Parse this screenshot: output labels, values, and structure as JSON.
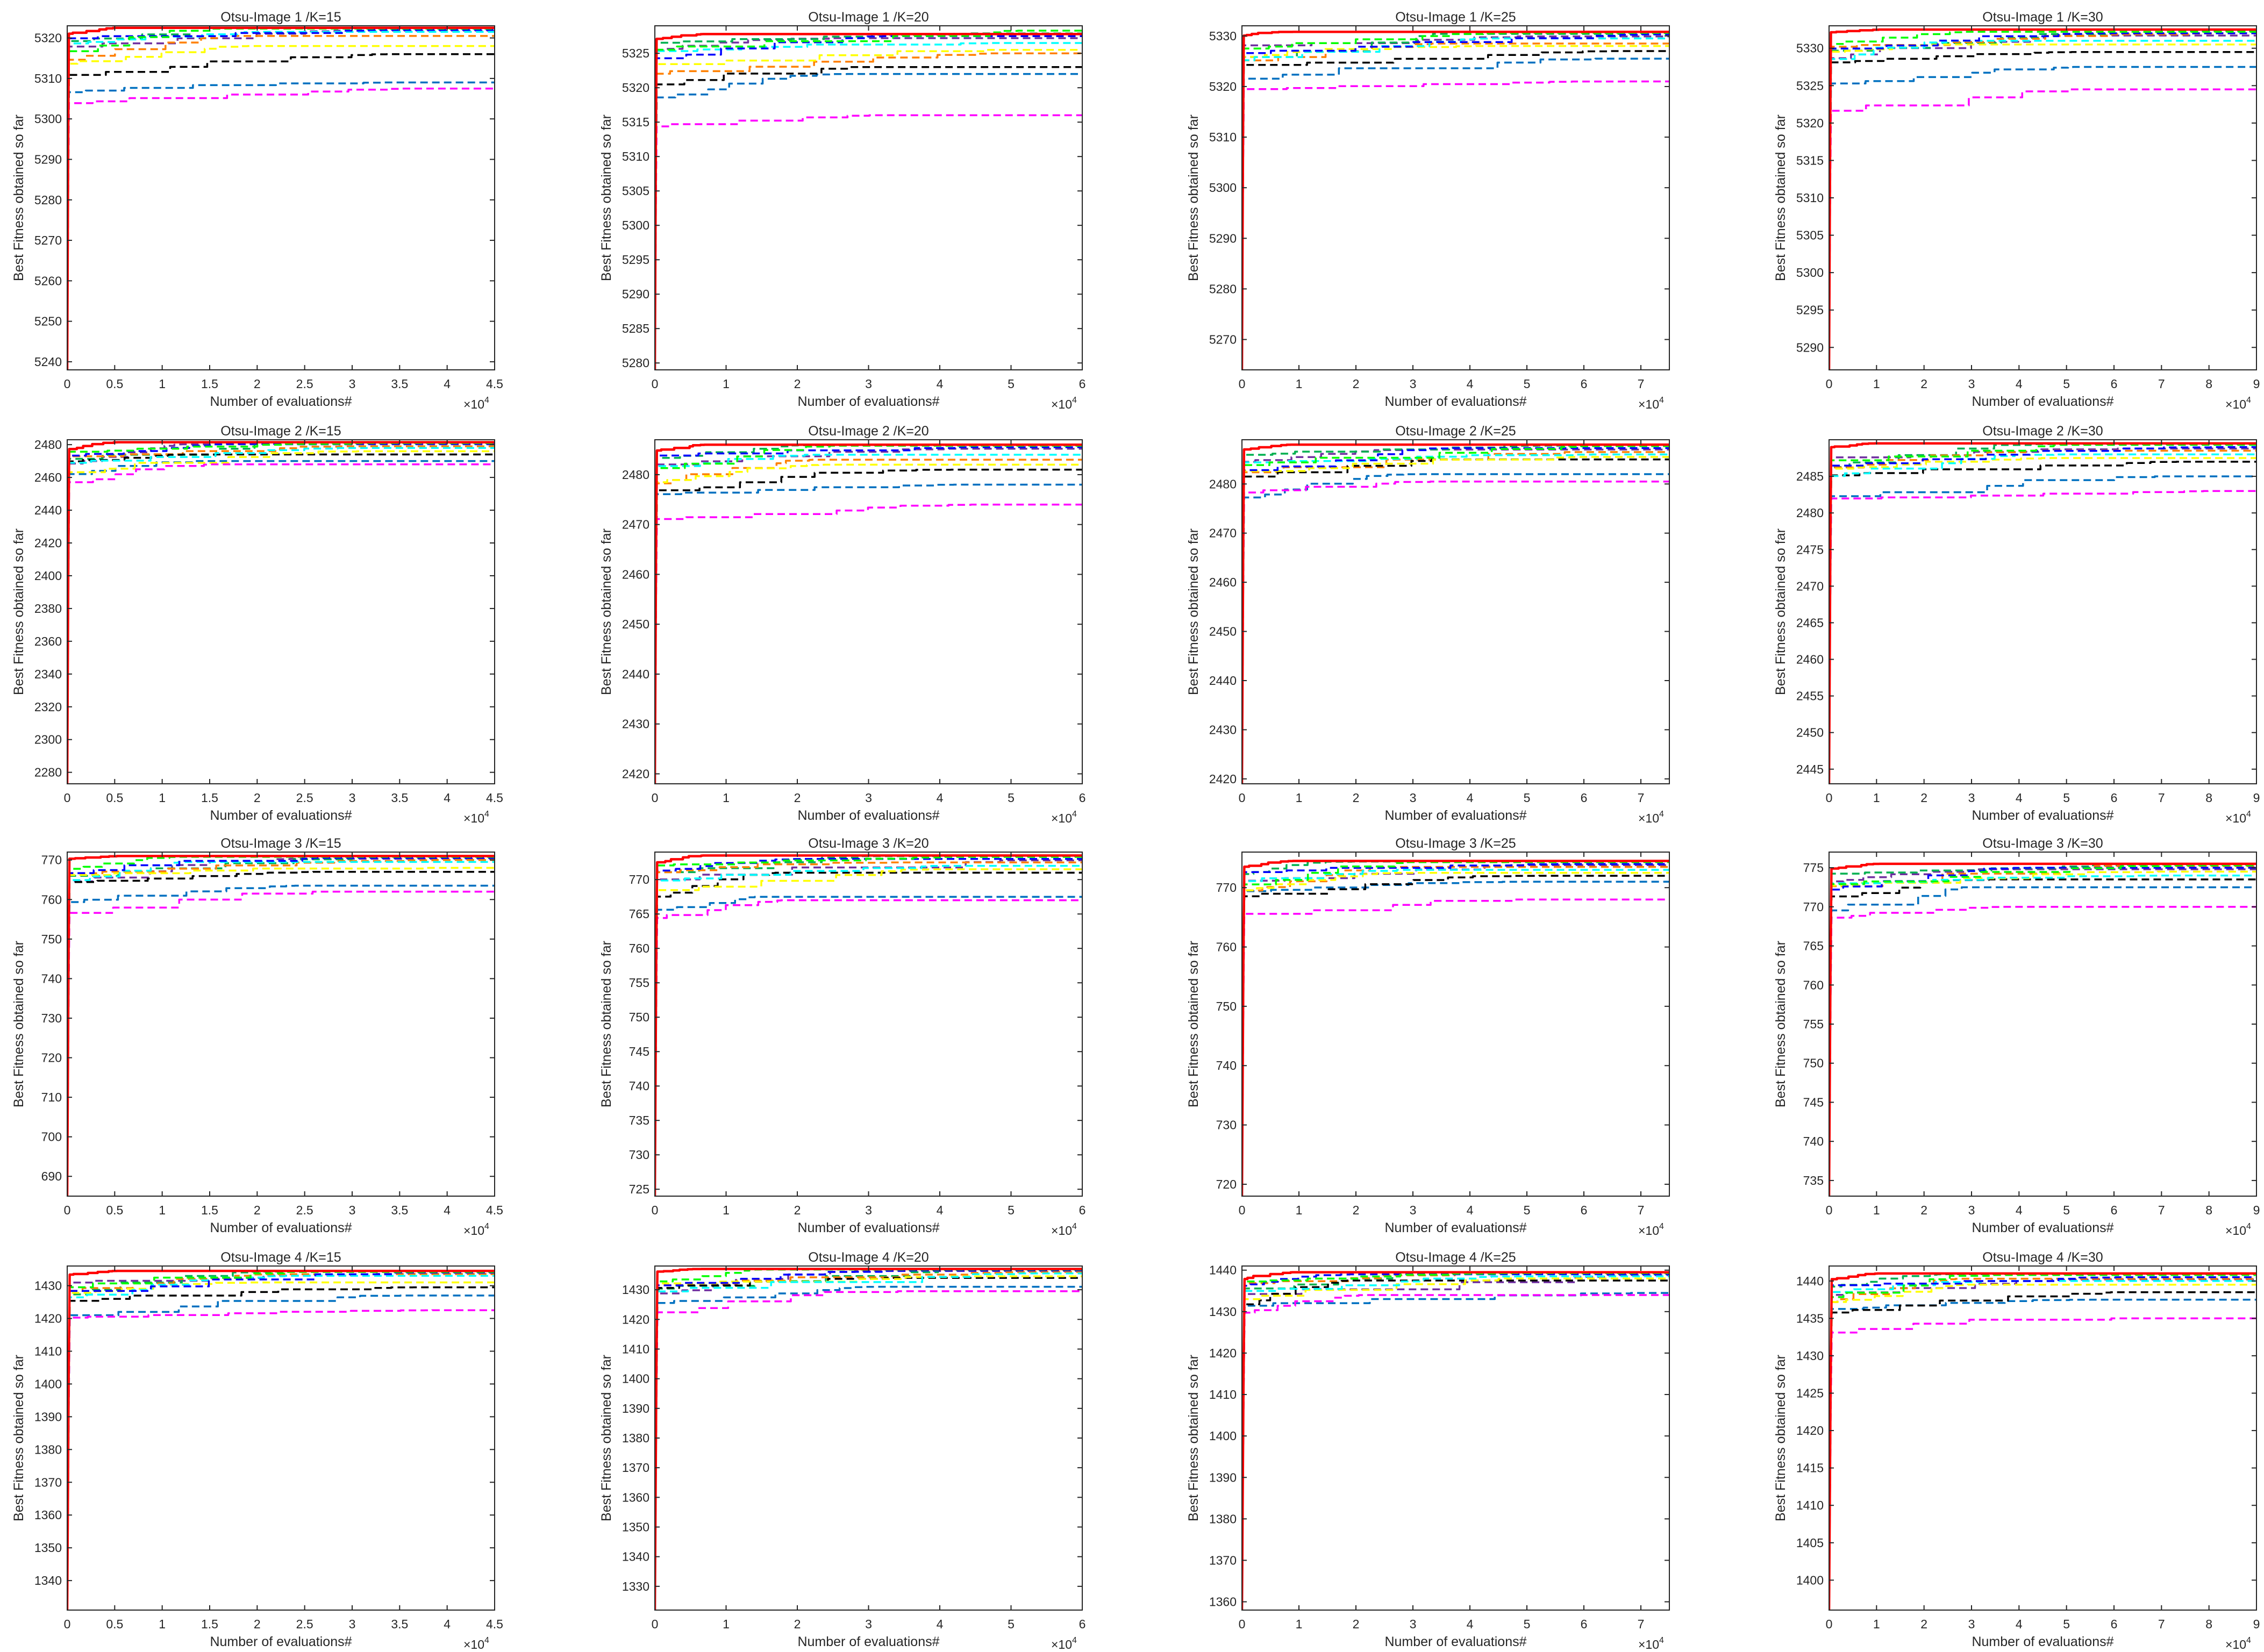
{
  "figure": {
    "series_colors": [
      "#ff0000",
      "#00ff00",
      "#0000ff",
      "#00ffff",
      "#ff00ff",
      "#ffff00",
      "#000000",
      "#ff8000",
      "#0070c0",
      "#00b050",
      "#7030a0"
    ],
    "series_styles": [
      "solid",
      "dashed",
      "dashed",
      "dashed",
      "dashed",
      "dashed",
      "dashed",
      "dashed",
      "dashed",
      "dashed",
      "dashed"
    ]
  },
  "chart_data": [
    {
      "type": "line",
      "title": "Otsu-Image 1 /K=15",
      "xlabel": "Number of evaluations#",
      "ylabel": "Best Fitness obtained so far",
      "x_multiplier": "×10^4",
      "xlim": [
        0,
        45000
      ],
      "ylim": [
        5238,
        5323
      ],
      "xticks": [
        0,
        0.5,
        1,
        1.5,
        2,
        2.5,
        3,
        3.5,
        4,
        4.5
      ],
      "yticks": [
        5240,
        5250,
        5260,
        5270,
        5280,
        5290,
        5300,
        5310,
        5320
      ],
      "start": 5238,
      "finals": [
        5322.5,
        5322.3,
        5322.0,
        5321.5,
        5307.5,
        5318.0,
        5316.0,
        5320.5,
        5309.0,
        5322.4,
        5321.8
      ]
    },
    {
      "type": "line",
      "title": "Otsu-Image 1 /K=20",
      "xlabel": "Number of evaluations#",
      "ylabel": "Best Fitness obtained so far",
      "x_multiplier": "×10^4",
      "xlim": [
        0,
        60000
      ],
      "ylim": [
        5279,
        5329
      ],
      "xticks": [
        0,
        1,
        2,
        3,
        4,
        5,
        6
      ],
      "yticks": [
        5280,
        5285,
        5290,
        5295,
        5300,
        5305,
        5310,
        5315,
        5320,
        5325
      ],
      "start": 5279,
      "finals": [
        5327.8,
        5328.3,
        5327.5,
        5326.5,
        5316.0,
        5325.5,
        5323.0,
        5325.0,
        5322.0,
        5327.9,
        5327.2
      ]
    },
    {
      "type": "line",
      "title": "Otsu-Image 1 /K=25",
      "xlabel": "Number of evaluations#",
      "ylabel": "Best Fitness obtained so far",
      "x_multiplier": "×10^4",
      "xlim": [
        0,
        75000
      ],
      "ylim": [
        5264,
        5332
      ],
      "xticks": [
        0,
        1,
        2,
        3,
        4,
        5,
        6,
        7
      ],
      "yticks": [
        5270,
        5280,
        5290,
        5300,
        5310,
        5320,
        5330
      ],
      "start": 5264,
      "finals": [
        5330.8,
        5330.6,
        5330.3,
        5329.5,
        5321.0,
        5328.0,
        5327.0,
        5328.5,
        5325.5,
        5330.4,
        5329.9
      ]
    },
    {
      "type": "line",
      "title": "Otsu-Image 1 /K=30",
      "xlabel": "Number of evaluations#",
      "ylabel": "Best Fitness obtained so far",
      "x_multiplier": "×10^4",
      "xlim": [
        0,
        90000
      ],
      "ylim": [
        5287,
        5333
      ],
      "xticks": [
        0,
        1,
        2,
        3,
        4,
        5,
        6,
        7,
        8,
        9
      ],
      "yticks": [
        5290,
        5295,
        5300,
        5305,
        5310,
        5315,
        5320,
        5325,
        5330
      ],
      "start": 5287,
      "finals": [
        5332.5,
        5332.2,
        5332.0,
        5331.0,
        5324.5,
        5330.5,
        5329.5,
        5332.0,
        5327.5,
        5332.3,
        5331.7
      ]
    },
    {
      "type": "line",
      "title": "Otsu-Image 2 /K=15",
      "xlabel": "Number of evaluations#",
      "ylabel": "Best Fitness obtained so far",
      "x_multiplier": "×10^4",
      "xlim": [
        0,
        45000
      ],
      "ylim": [
        2273,
        2483
      ],
      "xticks": [
        0,
        0.5,
        1,
        1.5,
        2,
        2.5,
        3,
        3.5,
        4,
        4.5
      ],
      "yticks": [
        2280,
        2300,
        2320,
        2340,
        2360,
        2380,
        2400,
        2420,
        2440,
        2460,
        2480
      ],
      "start": 2273,
      "finals": [
        2481.5,
        2481.0,
        2480.5,
        2478.0,
        2468.0,
        2476.0,
        2474.0,
        2479.0,
        2470.0,
        2481.2,
        2480.2
      ]
    },
    {
      "type": "line",
      "title": "Otsu-Image 2 /K=20",
      "xlabel": "Number of evaluations#",
      "ylabel": "Best Fitness obtained so far",
      "x_multiplier": "×10^4",
      "xlim": [
        0,
        60000
      ],
      "ylim": [
        2418,
        2487
      ],
      "xticks": [
        0,
        1,
        2,
        3,
        4,
        5,
        6
      ],
      "yticks": [
        2420,
        2430,
        2440,
        2450,
        2460,
        2470,
        2480
      ],
      "start": 2418,
      "finals": [
        2486.0,
        2485.8,
        2485.5,
        2484.0,
        2474.0,
        2482.0,
        2481.0,
        2483.0,
        2478.0,
        2485.9,
        2485.2
      ]
    },
    {
      "type": "line",
      "title": "Otsu-Image 2 /K=25",
      "xlabel": "Number of evaluations#",
      "ylabel": "Best Fitness obtained so far",
      "x_multiplier": "×10^4",
      "xlim": [
        0,
        75000
      ],
      "ylim": [
        2419,
        2489
      ],
      "xticks": [
        0,
        1,
        2,
        3,
        4,
        5,
        6,
        7
      ],
      "yticks": [
        2420,
        2430,
        2440,
        2450,
        2460,
        2470,
        2480
      ],
      "start": 2419,
      "finals": [
        2488.0,
        2487.7,
        2487.3,
        2486.0,
        2480.5,
        2485.5,
        2485.0,
        2486.5,
        2482.0,
        2487.8,
        2487.0
      ]
    },
    {
      "type": "line",
      "title": "Otsu-Image 2 /K=30",
      "xlabel": "Number of evaluations#",
      "ylabel": "Best Fitness obtained so far",
      "x_multiplier": "×10^4",
      "xlim": [
        0,
        90000
      ],
      "ylim": [
        2443,
        2490
      ],
      "xticks": [
        0,
        1,
        2,
        3,
        4,
        5,
        6,
        7,
        8,
        9
      ],
      "yticks": [
        2445,
        2450,
        2455,
        2460,
        2465,
        2470,
        2475,
        2480,
        2485
      ],
      "start": 2443,
      "finals": [
        2489.5,
        2489.3,
        2489.0,
        2488.0,
        2483.0,
        2487.5,
        2487.0,
        2488.5,
        2485.0,
        2489.4,
        2488.8
      ]
    },
    {
      "type": "line",
      "title": "Otsu-Image 3 /K=15",
      "xlabel": "Number of evaluations#",
      "ylabel": "Best Fitness obtained so far",
      "x_multiplier": "×10^4",
      "xlim": [
        0,
        45000
      ],
      "ylim": [
        685,
        772
      ],
      "xticks": [
        0,
        0.5,
        1,
        1.5,
        2,
        2.5,
        3,
        3.5,
        4,
        4.5
      ],
      "yticks": [
        690,
        700,
        710,
        720,
        730,
        740,
        750,
        760,
        770
      ],
      "start": 685,
      "finals": [
        771.0,
        770.8,
        770.5,
        769.5,
        762.0,
        768.0,
        767.0,
        770.0,
        763.5,
        770.9,
        770.3
      ]
    },
    {
      "type": "line",
      "title": "Otsu-Image 3 /K=20",
      "xlabel": "Number of evaluations#",
      "ylabel": "Best Fitness obtained so far",
      "x_multiplier": "×10^4",
      "xlim": [
        0,
        60000
      ],
      "ylim": [
        724,
        774
      ],
      "xticks": [
        0,
        1,
        2,
        3,
        4,
        5,
        6
      ],
      "yticks": [
        725,
        730,
        735,
        740,
        745,
        750,
        755,
        760,
        765,
        770
      ],
      "start": 724,
      "finals": [
        773.5,
        773.3,
        773.0,
        772.0,
        767.0,
        771.5,
        771.0,
        772.5,
        767.5,
        773.4,
        772.8
      ]
    },
    {
      "type": "line",
      "title": "Otsu-Image 3 /K=25",
      "xlabel": "Number of evaluations#",
      "ylabel": "Best Fitness obtained so far",
      "x_multiplier": "×10^4",
      "xlim": [
        0,
        75000
      ],
      "ylim": [
        718,
        776
      ],
      "xticks": [
        0,
        1,
        2,
        3,
        4,
        5,
        6,
        7
      ],
      "yticks": [
        720,
        730,
        740,
        750,
        760,
        770
      ],
      "start": 718,
      "finals": [
        774.5,
        774.3,
        774.0,
        773.0,
        768.0,
        772.5,
        772.0,
        773.5,
        771.0,
        774.4,
        773.8
      ]
    },
    {
      "type": "line",
      "title": "Otsu-Image 3 /K=30",
      "xlabel": "Number of evaluations#",
      "ylabel": "Best Fitness obtained so far",
      "x_multiplier": "×10^4",
      "xlim": [
        0,
        90000
      ],
      "ylim": [
        733,
        777
      ],
      "xticks": [
        0,
        1,
        2,
        3,
        4,
        5,
        6,
        7,
        8,
        9
      ],
      "yticks": [
        735,
        740,
        745,
        750,
        755,
        760,
        765,
        770,
        775
      ],
      "start": 733,
      "finals": [
        775.5,
        775.3,
        775.0,
        774.0,
        770.0,
        774.5,
        773.5,
        775.2,
        772.5,
        775.4,
        774.8
      ]
    },
    {
      "type": "line",
      "title": "Otsu-Image 4 /K=15",
      "xlabel": "Number of evaluations#",
      "ylabel": "Best Fitness obtained so far",
      "x_multiplier": "×10^4",
      "xlim": [
        0,
        45000
      ],
      "ylim": [
        1331,
        1436
      ],
      "xticks": [
        0,
        0.5,
        1,
        1.5,
        2,
        2.5,
        3,
        3.5,
        4,
        4.5
      ],
      "yticks": [
        1340,
        1350,
        1360,
        1370,
        1380,
        1390,
        1400,
        1410,
        1420,
        1430
      ],
      "start": 1331,
      "finals": [
        1434.5,
        1434.2,
        1434.0,
        1433.0,
        1422.5,
        1431.0,
        1429.5,
        1433.5,
        1427.0,
        1434.3,
        1433.6
      ]
    },
    {
      "type": "line",
      "title": "Otsu-Image 4 /K=20",
      "xlabel": "Number of evaluations#",
      "ylabel": "Best Fitness obtained so far",
      "x_multiplier": "×10^4",
      "xlim": [
        0,
        60000
      ],
      "ylim": [
        1322,
        1438
      ],
      "xticks": [
        0,
        1,
        2,
        3,
        4,
        5,
        6
      ],
      "yticks": [
        1330,
        1340,
        1350,
        1360,
        1370,
        1380,
        1390,
        1400,
        1410,
        1420,
        1430
      ],
      "start": 1322,
      "finals": [
        1437.0,
        1436.8,
        1436.5,
        1435.5,
        1429.5,
        1434.5,
        1434.0,
        1436.0,
        1431.0,
        1436.9,
        1436.3
      ]
    },
    {
      "type": "line",
      "title": "Otsu-Image 4 /K=25",
      "xlabel": "Number of evaluations#",
      "ylabel": "Best Fitness obtained so far",
      "x_multiplier": "×10^4",
      "xlim": [
        0,
        75000
      ],
      "ylim": [
        1358,
        1441
      ],
      "xticks": [
        0,
        1,
        2,
        3,
        4,
        5,
        6,
        7
      ],
      "yticks": [
        1360,
        1370,
        1380,
        1390,
        1400,
        1410,
        1420,
        1430,
        1440
      ],
      "start": 1358,
      "finals": [
        1439.5,
        1439.3,
        1439.0,
        1438.5,
        1434.0,
        1438.0,
        1437.5,
        1439.2,
        1434.5,
        1439.4,
        1438.8
      ]
    },
    {
      "type": "line",
      "title": "Otsu-Image 4 /K=30",
      "xlabel": "Number of evaluations#",
      "ylabel": "Best Fitness obtained so far",
      "x_multiplier": "×10^4",
      "xlim": [
        0,
        90000
      ],
      "ylim": [
        1396,
        1442
      ],
      "xticks": [
        0,
        1,
        2,
        3,
        4,
        5,
        6,
        7,
        8,
        9
      ],
      "yticks": [
        1400,
        1405,
        1410,
        1415,
        1420,
        1425,
        1430,
        1435,
        1440
      ],
      "start": 1396,
      "finals": [
        1441.0,
        1440.8,
        1440.5,
        1440.0,
        1435.0,
        1439.5,
        1438.5,
        1440.3,
        1437.5,
        1440.9,
        1440.2
      ]
    }
  ]
}
